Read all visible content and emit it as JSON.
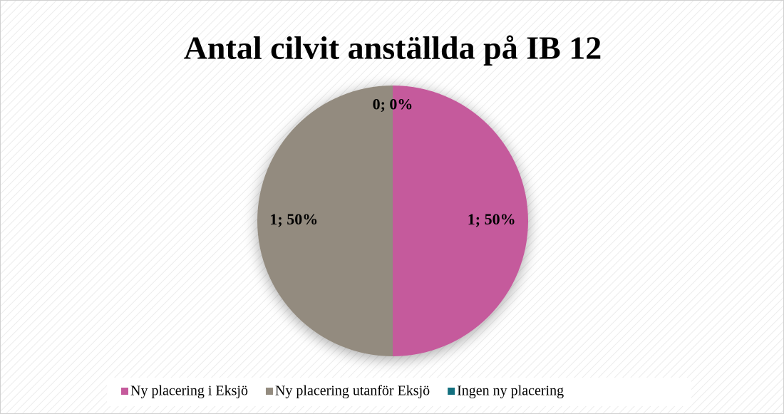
{
  "chart_data": {
    "type": "pie",
    "title": "Antal cilvit anställda på IB 12",
    "categories": [
      "Ny placering i Eksjö",
      "Ny placering utanför Eksjö",
      "Ingen ny placering"
    ],
    "values": [
      1,
      1,
      0
    ],
    "value_labels": [
      "1; 50%",
      "1; 50%",
      "0; 0%"
    ],
    "colors": [
      "#c55a9c",
      "#938b7f",
      "#13707f"
    ],
    "legend": "bottom"
  }
}
